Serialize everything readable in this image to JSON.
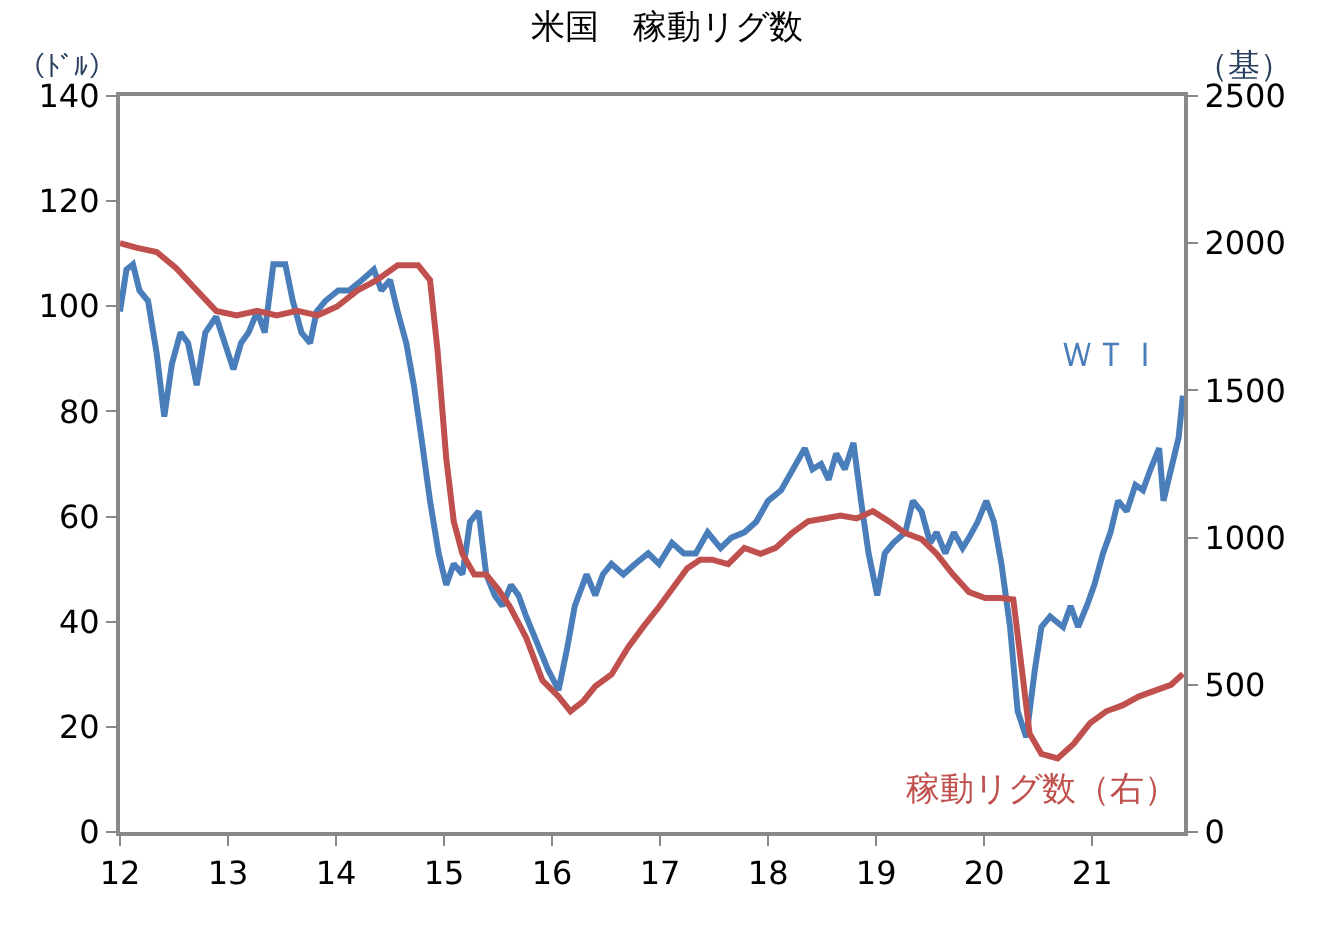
{
  "chart_data": {
    "type": "line",
    "title": "米国　稼動リグ数",
    "ylabel": "（ﾄﾞﾙ）",
    "y2label": "（基）",
    "xlim": [
      2012,
      2021.85
    ],
    "xticks": [
      {
        "value": 2012,
        "label": "12"
      },
      {
        "value": 2013,
        "label": "13"
      },
      {
        "value": 2014,
        "label": "14"
      },
      {
        "value": 2015,
        "label": "15"
      },
      {
        "value": 2016,
        "label": "16"
      },
      {
        "value": 2017,
        "label": "17"
      },
      {
        "value": 2018,
        "label": "18"
      },
      {
        "value": 2019,
        "label": "19"
      },
      {
        "value": 2020,
        "label": "20"
      },
      {
        "value": 2021,
        "label": "21"
      }
    ],
    "ylim": [
      0,
      140
    ],
    "yticks": [
      0,
      20,
      40,
      60,
      80,
      100,
      120,
      140
    ],
    "y2lim": [
      0,
      2500
    ],
    "y2ticks": [
      0,
      500,
      1000,
      1500,
      2000,
      2500
    ],
    "legend": false,
    "marker": "none",
    "line_style": "solid",
    "series": [
      {
        "name": "ＷＴＩ",
        "color": "#4a7ebb",
        "x": [
          2012.0,
          2012.06,
          2012.12,
          2012.18,
          2012.26,
          2012.34,
          2012.41,
          2012.48,
          2012.56,
          2012.63,
          2012.71,
          2012.79,
          2012.89,
          2012.97,
          2013.05,
          2013.12,
          2013.19,
          2013.27,
          2013.34,
          2013.42,
          2013.53,
          2013.6,
          2013.68,
          2013.76,
          2013.82,
          2013.9,
          2014.02,
          2014.12,
          2014.24,
          2014.35,
          2014.42,
          2014.5,
          2014.57,
          2014.65,
          2014.72,
          2014.79,
          2014.87,
          2014.95,
          2015.02,
          2015.09,
          2015.17,
          2015.24,
          2015.32,
          2015.39,
          2015.47,
          2015.54,
          2015.62,
          2015.69,
          2015.76,
          2015.84,
          2015.96,
          2016.06,
          2016.14,
          2016.21,
          2016.32,
          2016.4,
          2016.47,
          2016.55,
          2016.66,
          2016.77,
          2016.89,
          2016.99,
          2017.11,
          2017.22,
          2017.33,
          2017.44,
          2017.56,
          2017.66,
          2017.78,
          2017.89,
          2018.0,
          2018.12,
          2018.23,
          2018.34,
          2018.41,
          2018.49,
          2018.56,
          2018.63,
          2018.71,
          2018.79,
          2018.86,
          2018.93,
          2019.01,
          2019.08,
          2019.16,
          2019.27,
          2019.34,
          2019.42,
          2019.5,
          2019.56,
          2019.64,
          2019.72,
          2019.8,
          2019.86,
          2019.94,
          2020.02,
          2020.09,
          2020.16,
          2020.24,
          2020.31,
          2020.39,
          2020.47,
          2020.53,
          2020.61,
          2020.73,
          2020.8,
          2020.87,
          2020.95,
          2021.02,
          2021.1,
          2021.17,
          2021.24,
          2021.32,
          2021.4,
          2021.47,
          2021.54,
          2021.62,
          2021.66,
          2021.73,
          2021.8,
          2021.84
        ],
        "values": [
          99,
          107,
          108,
          103,
          101,
          91,
          79,
          89,
          95,
          93,
          85,
          95,
          98,
          93,
          88,
          93,
          95,
          99,
          95,
          108,
          108,
          101,
          95,
          93,
          99,
          101,
          103,
          103,
          105,
          107,
          103,
          105,
          99,
          93,
          85,
          75,
          63,
          53,
          47,
          51,
          49,
          59,
          61,
          49,
          45,
          43,
          47,
          45,
          41,
          37,
          31,
          27,
          35,
          43,
          49,
          45,
          49,
          51,
          49,
          51,
          53,
          51,
          55,
          53,
          53,
          57,
          54,
          56,
          57,
          59,
          63,
          65,
          69,
          73,
          69,
          70,
          67,
          72,
          69,
          74,
          63,
          53,
          45,
          53,
          55,
          57,
          63,
          61,
          55,
          57,
          53,
          57,
          54,
          56,
          59,
          63,
          59,
          51,
          39,
          23,
          18,
          31,
          39,
          41,
          39,
          43,
          39,
          43,
          47,
          53,
          57,
          63,
          61,
          66,
          65,
          69,
          73,
          63,
          69,
          75,
          83
        ]
      },
      {
        "name": "稼動リグ数（右）",
        "color": "#c0504d",
        "axis": "y2",
        "x": [
          2012.0,
          2012.15,
          2012.34,
          2012.52,
          2012.71,
          2012.89,
          2013.08,
          2013.27,
          2013.45,
          2013.64,
          2013.83,
          2014.01,
          2014.2,
          2014.38,
          2014.57,
          2014.76,
          2014.87,
          2014.94,
          2015.02,
          2015.09,
          2015.17,
          2015.28,
          2015.39,
          2015.5,
          2015.61,
          2015.76,
          2015.91,
          2016.06,
          2016.17,
          2016.29,
          2016.4,
          2016.55,
          2016.7,
          2016.84,
          2016.99,
          2017.14,
          2017.25,
          2017.37,
          2017.48,
          2017.63,
          2017.78,
          2017.93,
          2018.07,
          2018.22,
          2018.37,
          2018.52,
          2018.67,
          2018.82,
          2018.97,
          2019.12,
          2019.27,
          2019.42,
          2019.56,
          2019.71,
          2019.86,
          2020.01,
          2020.16,
          2020.27,
          2020.35,
          2020.42,
          2020.53,
          2020.68,
          2020.83,
          2020.98,
          2021.13,
          2021.28,
          2021.43,
          2021.58,
          2021.73,
          2021.84
        ],
        "values": [
          2000,
          1985,
          1970,
          1915,
          1840,
          1770,
          1755,
          1770,
          1755,
          1770,
          1755,
          1785,
          1840,
          1875,
          1925,
          1925,
          1875,
          1635,
          1270,
          1055,
          945,
          875,
          875,
          825,
          765,
          660,
          515,
          460,
          410,
          445,
          495,
          535,
          625,
          695,
          765,
          840,
          895,
          925,
          925,
          910,
          965,
          945,
          965,
          1015,
          1055,
          1065,
          1075,
          1065,
          1090,
          1055,
          1015,
          995,
          945,
          875,
          815,
          795,
          795,
          790,
          550,
          335,
          265,
          250,
          300,
          370,
          410,
          430,
          460,
          480,
          500,
          537
        ]
      }
    ]
  }
}
